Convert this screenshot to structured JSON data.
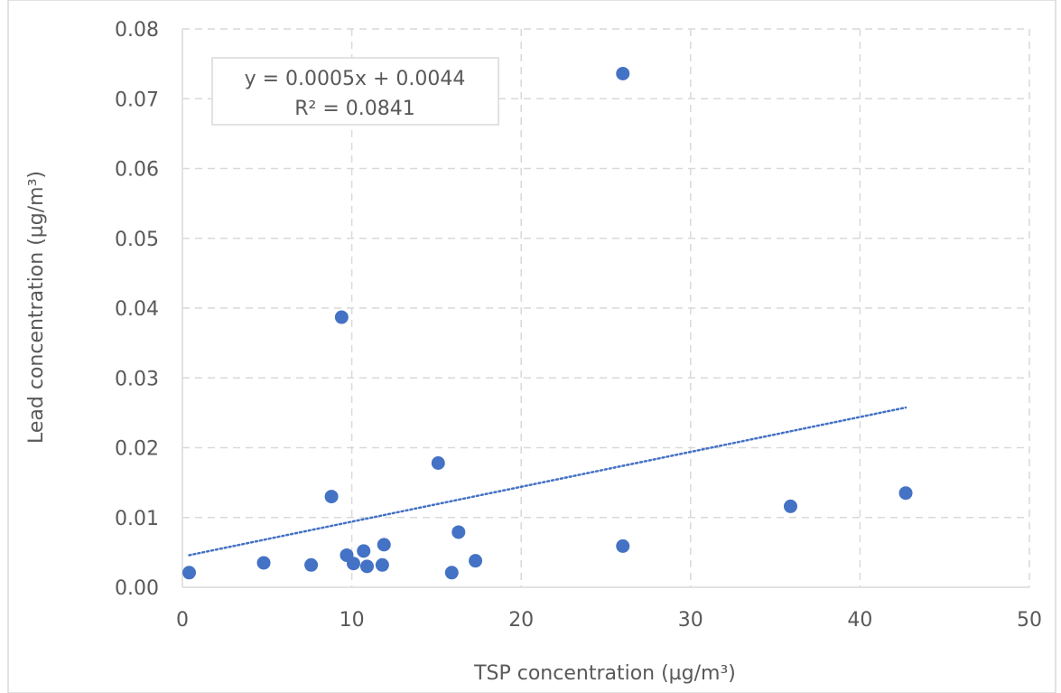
{
  "chart_data": {
    "type": "scatter",
    "title": "",
    "xlabel": "TSP concentration (µg/m³)",
    "ylabel": "Lead concentration (µg/m³)",
    "xlim": [
      0,
      50
    ],
    "ylim": [
      0,
      0.08
    ],
    "x_ticks": [
      "0",
      "10",
      "20",
      "30",
      "40",
      "50"
    ],
    "y_ticks": [
      "0.00",
      "0.01",
      "0.02",
      "0.03",
      "0.04",
      "0.05",
      "0.06",
      "0.07",
      "0.08"
    ],
    "grid": true,
    "grid_style": "dashed",
    "marker_color": "#4472c4",
    "trendline_color": "#4472c4",
    "series": [
      {
        "points": [
          {
            "x": 0.4,
            "y": 0.0021
          },
          {
            "x": 4.8,
            "y": 0.0035
          },
          {
            "x": 7.6,
            "y": 0.0032
          },
          {
            "x": 8.8,
            "y": 0.013
          },
          {
            "x": 9.4,
            "y": 0.0387
          },
          {
            "x": 9.7,
            "y": 0.0046
          },
          {
            "x": 10.1,
            "y": 0.0034
          },
          {
            "x": 10.7,
            "y": 0.0052
          },
          {
            "x": 10.9,
            "y": 0.003
          },
          {
            "x": 11.8,
            "y": 0.0032
          },
          {
            "x": 11.9,
            "y": 0.0061
          },
          {
            "x": 15.1,
            "y": 0.0178
          },
          {
            "x": 15.9,
            "y": 0.0021
          },
          {
            "x": 16.3,
            "y": 0.0079
          },
          {
            "x": 17.3,
            "y": 0.0038
          },
          {
            "x": 26.0,
            "y": 0.0736
          },
          {
            "x": 26.0,
            "y": 0.0059
          },
          {
            "x": 35.9,
            "y": 0.0116
          },
          {
            "x": 42.7,
            "y": 0.0135
          }
        ]
      }
    ],
    "trendline": {
      "type": "linear",
      "slope": 0.0005,
      "intercept": 0.0044,
      "x_range": [
        0.4,
        42.7
      ],
      "equation": "y = 0.0005x + 0.0044",
      "r_squared": "R² = 0.0841"
    }
  }
}
